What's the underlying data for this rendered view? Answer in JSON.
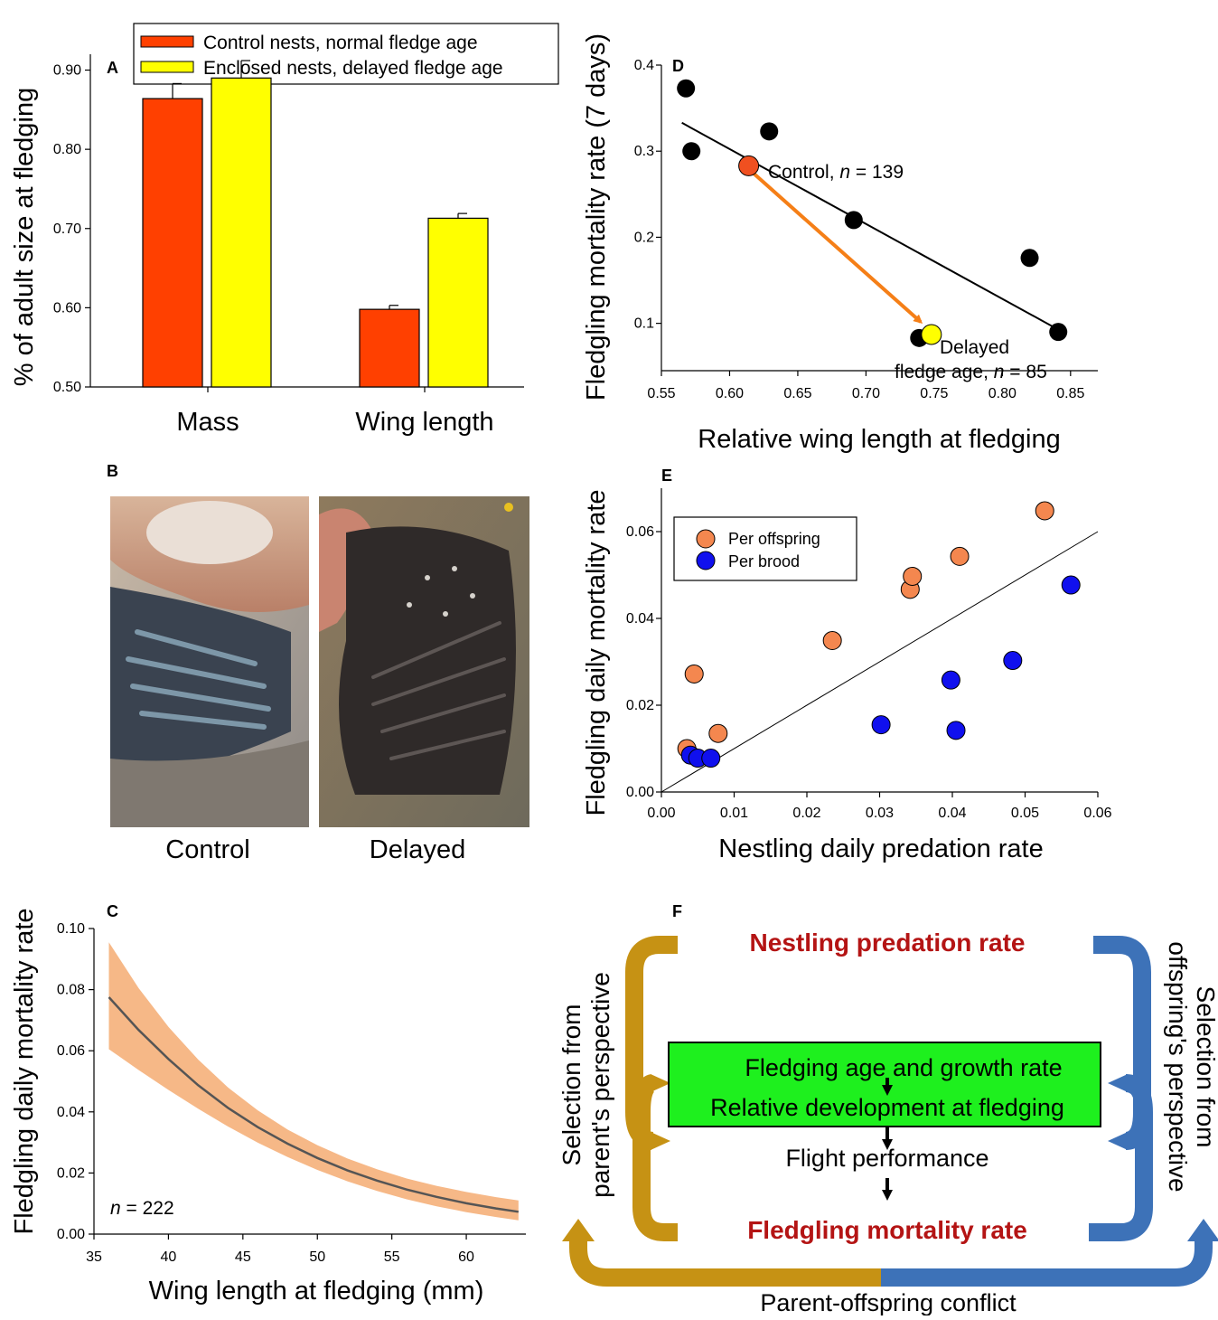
{
  "panels": {
    "A": "A",
    "B": "B",
    "C": "C",
    "D": "D",
    "E": "E",
    "F": "F"
  },
  "chart_data": [
    {
      "panel": "A",
      "type": "bar",
      "ylabel": "% of adult size at fledging",
      "categories": [
        "Mass",
        "Wing length"
      ],
      "ylim": [
        0.5,
        0.92
      ],
      "yticks": [
        0.5,
        0.6,
        0.7,
        0.8,
        0.9
      ],
      "ytick_labels": [
        "0.50",
        "0.60",
        "0.70",
        "0.80",
        "0.90"
      ],
      "legend_position": "top",
      "series": [
        {
          "name": "Control nests, normal fledge age",
          "color": "#ff4000",
          "values": [
            0.864,
            0.598
          ],
          "errors": [
            0.019,
            0.005
          ]
        },
        {
          "name": "Enclosed nests, delayed fledge age",
          "color": "#ffff00",
          "values": [
            0.89,
            0.713
          ],
          "errors": [
            0.022,
            0.006
          ]
        }
      ]
    },
    {
      "panel": "D",
      "type": "scatter",
      "xlabel": "Relative wing length at fledging",
      "ylabel": "Fledgling mortality rate (7 days)",
      "xlim": [
        0.55,
        0.87
      ],
      "ylim": [
        0.045,
        0.4
      ],
      "xticks": [
        0.55,
        0.6,
        0.65,
        0.7,
        0.75,
        0.8,
        0.85
      ],
      "xtick_labels": [
        "0.55",
        "0.60",
        "0.65",
        "0.70",
        "0.75",
        "0.80",
        "0.85"
      ],
      "yticks": [
        0.1,
        0.2,
        0.3,
        0.4
      ],
      "ytick_labels": [
        "0.1",
        "0.2",
        "0.3",
        "0.4"
      ],
      "points": [
        {
          "x": 0.568,
          "y": 0.373
        },
        {
          "x": 0.572,
          "y": 0.3
        },
        {
          "x": 0.629,
          "y": 0.323
        },
        {
          "x": 0.691,
          "y": 0.22
        },
        {
          "x": 0.739,
          "y": 0.083
        },
        {
          "x": 0.82,
          "y": 0.176
        },
        {
          "x": 0.841,
          "y": 0.09
        }
      ],
      "fit_line": [
        {
          "x": 0.565,
          "y": 0.333
        },
        {
          "x": 0.843,
          "y": 0.091
        }
      ],
      "highlight_points": [
        {
          "x": 0.614,
          "y": 0.283,
          "color": "#f05020",
          "label": "Control, ",
          "n_label": "n",
          "eq": " = 139"
        },
        {
          "x": 0.748,
          "y": 0.087,
          "color": "#ffff00",
          "label": "Delayed",
          "label2": "fledge age, ",
          "n_label": "n",
          "eq": " = 85"
        }
      ],
      "arrow_color": "#f57f17"
    },
    {
      "panel": "E",
      "type": "scatter",
      "xlabel": "Nestling daily predation rate",
      "ylabel": "Fledgling daily mortality rate",
      "xlim": [
        0,
        0.06
      ],
      "ylim": [
        0,
        0.07
      ],
      "xticks": [
        0,
        0.01,
        0.02,
        0.03,
        0.04,
        0.05,
        0.06
      ],
      "xtick_labels": [
        "0.00",
        "0.01",
        "0.02",
        "0.03",
        "0.04",
        "0.05",
        "0.06"
      ],
      "yticks": [
        0,
        0.02,
        0.04,
        0.06
      ],
      "ytick_labels": [
        "0.00",
        "0.02",
        "0.04",
        "0.06"
      ],
      "legend_position": "top-left",
      "line": [
        {
          "x": 0,
          "y": 0
        },
        {
          "x": 0.06,
          "y": 0.06
        }
      ],
      "series": [
        {
          "name": "Per offspring",
          "color": "#f4874f",
          "points": [
            {
              "x": 0.0035,
              "y": 0.01
            },
            {
              "x": 0.0045,
              "y": 0.0272
            },
            {
              "x": 0.0078,
              "y": 0.0135
            },
            {
              "x": 0.0235,
              "y": 0.0349
            },
            {
              "x": 0.0342,
              "y": 0.0467
            },
            {
              "x": 0.0345,
              "y": 0.0497
            },
            {
              "x": 0.041,
              "y": 0.0543
            },
            {
              "x": 0.0527,
              "y": 0.0648
            }
          ]
        },
        {
          "name": "Per brood",
          "color": "#1010ee",
          "points": [
            {
              "x": 0.004,
              "y": 0.0085
            },
            {
              "x": 0.005,
              "y": 0.0078
            },
            {
              "x": 0.0068,
              "y": 0.0078
            },
            {
              "x": 0.0302,
              "y": 0.0155
            },
            {
              "x": 0.0398,
              "y": 0.0258
            },
            {
              "x": 0.0405,
              "y": 0.0142
            },
            {
              "x": 0.0483,
              "y": 0.0303
            },
            {
              "x": 0.0563,
              "y": 0.0477
            }
          ]
        }
      ]
    },
    {
      "panel": "C",
      "type": "line",
      "xlabel": "Wing length at fledging (mm)",
      "ylabel": "Fledgling daily mortality rate",
      "xlim": [
        35,
        64
      ],
      "ylim": [
        0,
        0.1
      ],
      "xticks": [
        35,
        40,
        45,
        50,
        55,
        60
      ],
      "yticks": [
        0,
        0.02,
        0.04,
        0.06,
        0.08,
        0.1
      ],
      "ytick_labels": [
        "0.00",
        "0.02",
        "0.04",
        "0.06",
        "0.08",
        "0.10"
      ],
      "x": [
        36,
        38,
        40,
        42,
        44,
        46,
        48,
        50,
        52,
        54,
        56,
        58,
        60,
        62,
        63.5
      ],
      "series": [
        {
          "name": "mean",
          "color": "#555555",
          "values": [
            0.0775,
            0.0668,
            0.0573,
            0.0487,
            0.0413,
            0.035,
            0.0296,
            0.0249,
            0.0209,
            0.0175,
            0.0146,
            0.0122,
            0.0101,
            0.0084,
            0.0073
          ]
        },
        {
          "name": "upper",
          "color": "#f6b887",
          "values": [
            0.0955,
            0.0805,
            0.0678,
            0.0571,
            0.048,
            0.0405,
            0.0342,
            0.0291,
            0.0248,
            0.0212,
            0.0182,
            0.0158,
            0.0138,
            0.0121,
            0.011
          ]
        },
        {
          "name": "lower",
          "color": "#f6b887",
          "values": [
            0.0605,
            0.0537,
            0.0472,
            0.041,
            0.0352,
            0.0299,
            0.0252,
            0.021,
            0.0173,
            0.0141,
            0.0114,
            0.0091,
            0.0072,
            0.0056,
            0.0045
          ]
        }
      ],
      "n_annotation": {
        "n": "n",
        "eq": " = 222"
      }
    }
  ],
  "panelB": {
    "left_caption": "Control",
    "right_caption": "Delayed"
  },
  "panelF": {
    "top": "Nestling predation rate",
    "bottom": "Fledgling mortality rate",
    "box_line1": "Fledging age and growth rate",
    "box_line2": "Relative development at fledging",
    "middle": "Flight performance",
    "left_line1": "Selection from",
    "left_line2": "parent's perspective",
    "right_line1": "Selection from",
    "right_line2": "offspring's perspective",
    "bottom_caption": "Parent-offspring conflict",
    "colors": {
      "gold": "#c69214",
      "blue": "#3d72b8",
      "box": "#1ef01e",
      "red": "#b41414"
    }
  }
}
